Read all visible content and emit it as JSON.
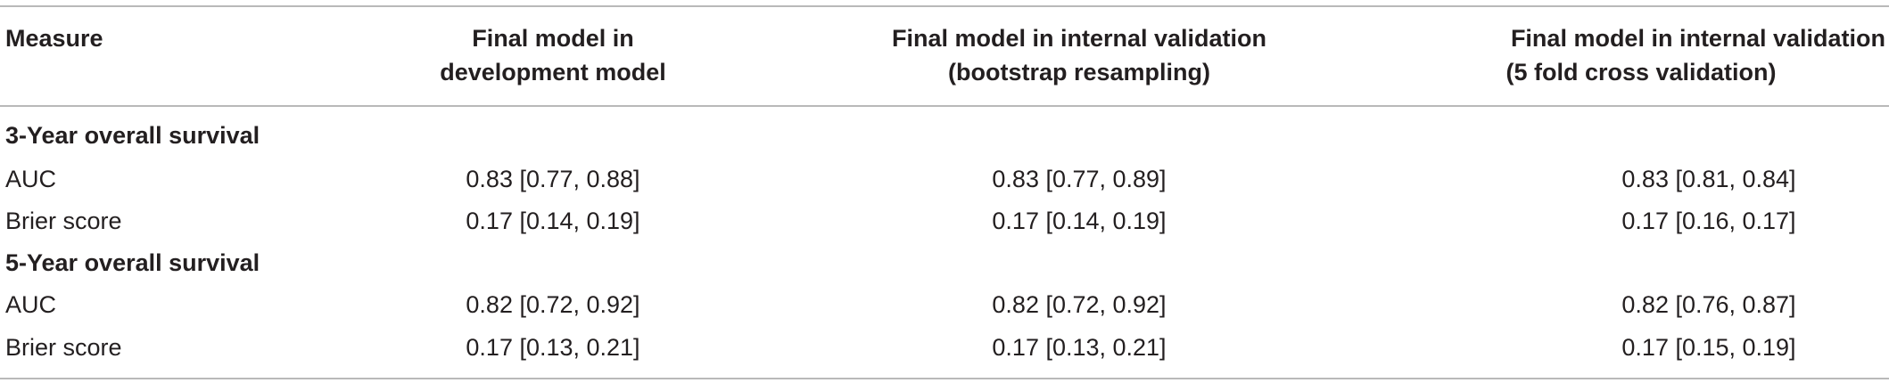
{
  "table": {
    "headers": [
      {
        "lines": [
          "Measure"
        ]
      },
      {
        "lines": [
          "Final model in",
          "development model"
        ]
      },
      {
        "lines": [
          "Final model in internal validation",
          "(bootstrap resampling)"
        ]
      },
      {
        "lines": [
          "Final model in internal validation",
          "(5 fold cross validation)"
        ]
      }
    ],
    "sections": [
      {
        "title": "3-Year overall survival",
        "rows": [
          {
            "label": "AUC",
            "values": [
              "0.83 [0.77, 0.88]",
              "0.83 [0.77, 0.89]",
              "0.83 [0.81, 0.84]"
            ]
          },
          {
            "label": "Brier score",
            "values": [
              "0.17 [0.14, 0.19]",
              "0.17 [0.14, 0.19]",
              "0.17 [0.16, 0.17]"
            ]
          }
        ]
      },
      {
        "title": "5-Year overall survival",
        "rows": [
          {
            "label": "AUC",
            "values": [
              "0.82 [0.72, 0.92]",
              "0.82 [0.72, 0.92]",
              "0.82 [0.76, 0.87]"
            ]
          },
          {
            "label": "Brier score",
            "values": [
              "0.17 [0.13, 0.21]",
              "0.17 [0.13, 0.21]",
              "0.17 [0.15, 0.19]"
            ]
          }
        ]
      }
    ]
  }
}
